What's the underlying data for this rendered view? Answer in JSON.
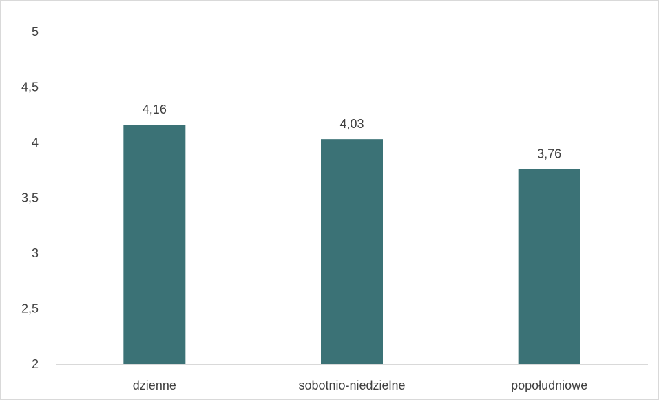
{
  "chart_data": {
    "type": "bar",
    "categories": [
      "dzienne",
      "sobotnio-niedzielne",
      "popołudniowe"
    ],
    "values": [
      4.16,
      4.03,
      3.76
    ],
    "value_labels": [
      "4,16",
      "4,03",
      "3,76"
    ],
    "title": "",
    "xlabel": "",
    "ylabel": "",
    "ylim": [
      2,
      5
    ],
    "y_ticks": [
      2,
      2.5,
      3,
      3.5,
      4,
      4.5,
      5
    ],
    "y_tick_labels": [
      "2",
      "2,5",
      "3",
      "3,5",
      "4",
      "4,5",
      "5"
    ],
    "grid": false,
    "legend": "none",
    "bar_color": "#3b7276",
    "axis_color": "#d9d9d9",
    "text_color": "#404040"
  }
}
